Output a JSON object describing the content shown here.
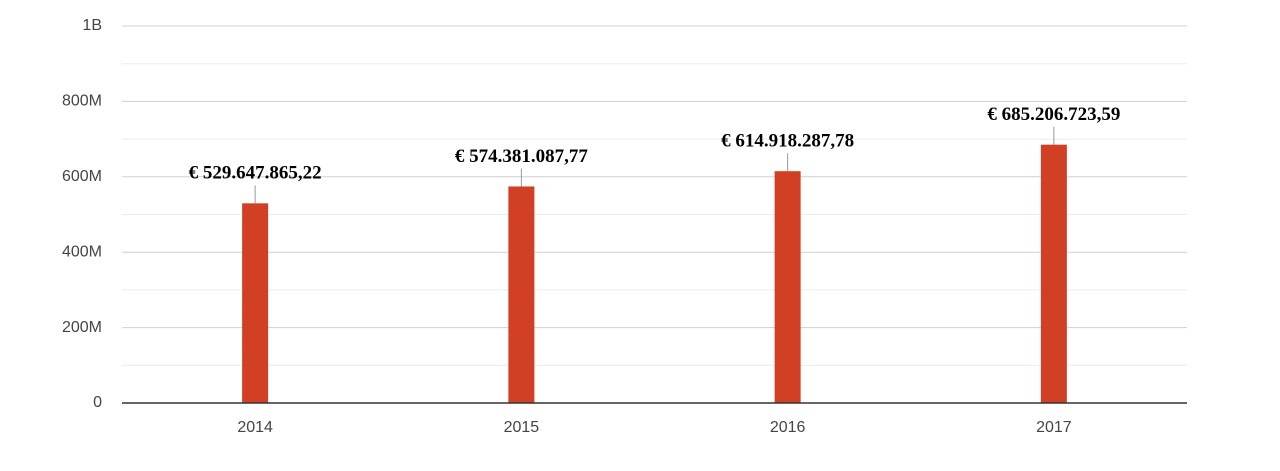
{
  "chart_data": {
    "type": "bar",
    "categories": [
      "2014",
      "2015",
      "2016",
      "2017"
    ],
    "values": [
      529647865.22,
      574381087.77,
      614918287.78,
      685206723.59
    ],
    "value_labels": [
      "€ 529.647.865,22",
      "€ 574.381.087,77",
      "€ 614.918.287,78",
      "€ 685.206.723,59"
    ],
    "color": "#d13f24",
    "ylim": [
      0,
      1000000000
    ],
    "yticks": [
      0,
      {
        "value": 200000000,
        "label": "200M"
      },
      {
        "value": 400000000,
        "label": "400M"
      },
      {
        "value": 600000000,
        "label": "600M"
      },
      {
        "value": 800000000,
        "label": "800M"
      },
      {
        "value": 1000000000,
        "label": "1B"
      }
    ],
    "minor_yticks": [
      100000000,
      300000000,
      500000000,
      700000000,
      900000000
    ],
    "grid": true
  }
}
